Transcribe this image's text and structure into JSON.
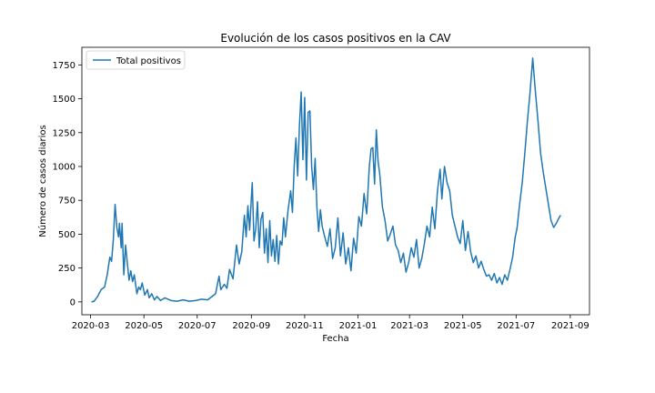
{
  "chart_data": {
    "type": "line",
    "title": "Evolución de los casos positivos en la CAV",
    "xlabel": "Fecha",
    "ylabel": "Número de casos diarios",
    "xlim": [
      "2020-02-20",
      "2021-09-23"
    ],
    "ylim": [
      -95,
      1880
    ],
    "x_ticks": [
      {
        "date": "2020-03-01",
        "label": "2020-03"
      },
      {
        "date": "2020-05-01",
        "label": "2020-05"
      },
      {
        "date": "2020-07-01",
        "label": "2020-07"
      },
      {
        "date": "2020-09-01",
        "label": "2020-09"
      },
      {
        "date": "2020-11-01",
        "label": "2020-11"
      },
      {
        "date": "2021-01-01",
        "label": "2021-01"
      },
      {
        "date": "2021-03-01",
        "label": "2021-03"
      },
      {
        "date": "2021-05-01",
        "label": "2021-05"
      },
      {
        "date": "2021-07-01",
        "label": "2021-07"
      },
      {
        "date": "2021-09-01",
        "label": "2021-09"
      }
    ],
    "y_ticks": [
      0,
      250,
      500,
      750,
      1000,
      1250,
      1500,
      1750
    ],
    "grid": false,
    "legend_position": "top-left",
    "series": [
      {
        "name": "Total positivos",
        "color": "#1f77b4",
        "points": [
          [
            "2020-03-02",
            0
          ],
          [
            "2020-03-05",
            5
          ],
          [
            "2020-03-09",
            40
          ],
          [
            "2020-03-13",
            90
          ],
          [
            "2020-03-17",
            110
          ],
          [
            "2020-03-20",
            200
          ],
          [
            "2020-03-23",
            330
          ],
          [
            "2020-03-25",
            300
          ],
          [
            "2020-03-27",
            460
          ],
          [
            "2020-03-29",
            720
          ],
          [
            "2020-03-31",
            550
          ],
          [
            "2020-04-02",
            480
          ],
          [
            "2020-04-03",
            580
          ],
          [
            "2020-04-05",
            400
          ],
          [
            "2020-04-06",
            580
          ],
          [
            "2020-04-08",
            200
          ],
          [
            "2020-04-10",
            420
          ],
          [
            "2020-04-12",
            290
          ],
          [
            "2020-04-14",
            160
          ],
          [
            "2020-04-16",
            230
          ],
          [
            "2020-04-18",
            150
          ],
          [
            "2020-04-20",
            200
          ],
          [
            "2020-04-23",
            60
          ],
          [
            "2020-04-25",
            110
          ],
          [
            "2020-04-27",
            90
          ],
          [
            "2020-04-29",
            140
          ],
          [
            "2020-05-02",
            50
          ],
          [
            "2020-05-05",
            90
          ],
          [
            "2020-05-07",
            30
          ],
          [
            "2020-05-10",
            60
          ],
          [
            "2020-05-13",
            15
          ],
          [
            "2020-05-16",
            40
          ],
          [
            "2020-05-20",
            10
          ],
          [
            "2020-05-25",
            30
          ],
          [
            "2020-06-01",
            10
          ],
          [
            "2020-06-08",
            5
          ],
          [
            "2020-06-15",
            15
          ],
          [
            "2020-06-22",
            5
          ],
          [
            "2020-06-29",
            10
          ],
          [
            "2020-07-06",
            20
          ],
          [
            "2020-07-13",
            15
          ],
          [
            "2020-07-18",
            40
          ],
          [
            "2020-07-22",
            60
          ],
          [
            "2020-07-26",
            190
          ],
          [
            "2020-07-28",
            90
          ],
          [
            "2020-08-01",
            130
          ],
          [
            "2020-08-04",
            100
          ],
          [
            "2020-08-07",
            240
          ],
          [
            "2020-08-11",
            170
          ],
          [
            "2020-08-15",
            420
          ],
          [
            "2020-08-18",
            280
          ],
          [
            "2020-08-21",
            370
          ],
          [
            "2020-08-24",
            640
          ],
          [
            "2020-08-26",
            480
          ],
          [
            "2020-08-28",
            710
          ],
          [
            "2020-08-30",
            530
          ],
          [
            "2020-09-01",
            770
          ],
          [
            "2020-09-02",
            880
          ],
          [
            "2020-09-04",
            450
          ],
          [
            "2020-09-06",
            540
          ],
          [
            "2020-09-08",
            740
          ],
          [
            "2020-09-10",
            400
          ],
          [
            "2020-09-12",
            610
          ],
          [
            "2020-09-14",
            660
          ],
          [
            "2020-09-16",
            360
          ],
          [
            "2020-09-18",
            540
          ],
          [
            "2020-09-20",
            290
          ],
          [
            "2020-09-22",
            600
          ],
          [
            "2020-09-24",
            340
          ],
          [
            "2020-09-26",
            460
          ],
          [
            "2020-09-28",
            300
          ],
          [
            "2020-09-30",
            490
          ],
          [
            "2020-10-02",
            280
          ],
          [
            "2020-10-04",
            450
          ],
          [
            "2020-10-06",
            420
          ],
          [
            "2020-10-08",
            620
          ],
          [
            "2020-10-10",
            480
          ],
          [
            "2020-10-13",
            680
          ],
          [
            "2020-10-16",
            820
          ],
          [
            "2020-10-18",
            660
          ],
          [
            "2020-10-20",
            1000
          ],
          [
            "2020-10-22",
            1210
          ],
          [
            "2020-10-24",
            930
          ],
          [
            "2020-10-26",
            1300
          ],
          [
            "2020-10-28",
            1550
          ],
          [
            "2020-10-30",
            1050
          ],
          [
            "2020-11-01",
            1510
          ],
          [
            "2020-11-03",
            900
          ],
          [
            "2020-11-05",
            1400
          ],
          [
            "2020-11-07",
            1410
          ],
          [
            "2020-11-09",
            1000
          ],
          [
            "2020-11-11",
            830
          ],
          [
            "2020-11-13",
            1060
          ],
          [
            "2020-11-15",
            700
          ],
          [
            "2020-11-17",
            520
          ],
          [
            "2020-11-19",
            680
          ],
          [
            "2020-11-21",
            560
          ],
          [
            "2020-11-24",
            480
          ],
          [
            "2020-11-27",
            410
          ],
          [
            "2020-11-30",
            540
          ],
          [
            "2020-12-03",
            320
          ],
          [
            "2020-12-06",
            400
          ],
          [
            "2020-12-09",
            620
          ],
          [
            "2020-12-12",
            340
          ],
          [
            "2020-12-15",
            510
          ],
          [
            "2020-12-18",
            280
          ],
          [
            "2020-12-21",
            400
          ],
          [
            "2020-12-24",
            230
          ],
          [
            "2020-12-27",
            470
          ],
          [
            "2020-12-30",
            360
          ],
          [
            "2021-01-02",
            630
          ],
          [
            "2021-01-05",
            560
          ],
          [
            "2021-01-08",
            800
          ],
          [
            "2021-01-11",
            650
          ],
          [
            "2021-01-14",
            1000
          ],
          [
            "2021-01-16",
            1130
          ],
          [
            "2021-01-18",
            1140
          ],
          [
            "2021-01-20",
            870
          ],
          [
            "2021-01-22",
            1270
          ],
          [
            "2021-01-24",
            1040
          ],
          [
            "2021-01-26",
            940
          ],
          [
            "2021-01-29",
            700
          ],
          [
            "2021-02-01",
            600
          ],
          [
            "2021-02-04",
            450
          ],
          [
            "2021-02-07",
            500
          ],
          [
            "2021-02-10",
            560
          ],
          [
            "2021-02-13",
            420
          ],
          [
            "2021-02-16",
            380
          ],
          [
            "2021-02-19",
            290
          ],
          [
            "2021-02-22",
            360
          ],
          [
            "2021-02-25",
            220
          ],
          [
            "2021-02-28",
            290
          ],
          [
            "2021-03-03",
            400
          ],
          [
            "2021-03-06",
            330
          ],
          [
            "2021-03-09",
            460
          ],
          [
            "2021-03-12",
            250
          ],
          [
            "2021-03-15",
            320
          ],
          [
            "2021-03-18",
            430
          ],
          [
            "2021-03-21",
            560
          ],
          [
            "2021-03-24",
            480
          ],
          [
            "2021-03-27",
            700
          ],
          [
            "2021-03-30",
            540
          ],
          [
            "2021-04-02",
            820
          ],
          [
            "2021-04-05",
            980
          ],
          [
            "2021-04-07",
            760
          ],
          [
            "2021-04-10",
            1000
          ],
          [
            "2021-04-13",
            880
          ],
          [
            "2021-04-16",
            820
          ],
          [
            "2021-04-19",
            640
          ],
          [
            "2021-04-22",
            560
          ],
          [
            "2021-04-25",
            480
          ],
          [
            "2021-04-28",
            430
          ],
          [
            "2021-05-01",
            600
          ],
          [
            "2021-05-04",
            380
          ],
          [
            "2021-05-07",
            520
          ],
          [
            "2021-05-10",
            370
          ],
          [
            "2021-05-13",
            290
          ],
          [
            "2021-05-16",
            340
          ],
          [
            "2021-05-19",
            250
          ],
          [
            "2021-05-22",
            300
          ],
          [
            "2021-05-25",
            240
          ],
          [
            "2021-05-28",
            190
          ],
          [
            "2021-05-31",
            200
          ],
          [
            "2021-06-03",
            160
          ],
          [
            "2021-06-06",
            210
          ],
          [
            "2021-06-09",
            140
          ],
          [
            "2021-06-12",
            180
          ],
          [
            "2021-06-15",
            130
          ],
          [
            "2021-06-18",
            200
          ],
          [
            "2021-06-21",
            160
          ],
          [
            "2021-06-24",
            240
          ],
          [
            "2021-06-27",
            330
          ],
          [
            "2021-06-30",
            480
          ],
          [
            "2021-07-02",
            540
          ],
          [
            "2021-07-05",
            720
          ],
          [
            "2021-07-08",
            880
          ],
          [
            "2021-07-11",
            1100
          ],
          [
            "2021-07-14",
            1340
          ],
          [
            "2021-07-17",
            1550
          ],
          [
            "2021-07-20",
            1800
          ],
          [
            "2021-07-23",
            1560
          ],
          [
            "2021-07-26",
            1340
          ],
          [
            "2021-07-29",
            1100
          ],
          [
            "2021-08-01",
            960
          ],
          [
            "2021-08-04",
            840
          ],
          [
            "2021-08-07",
            720
          ],
          [
            "2021-08-10",
            600
          ],
          [
            "2021-08-13",
            550
          ],
          [
            "2021-08-16",
            580
          ],
          [
            "2021-08-19",
            620
          ],
          [
            "2021-08-21",
            640
          ]
        ]
      }
    ]
  }
}
